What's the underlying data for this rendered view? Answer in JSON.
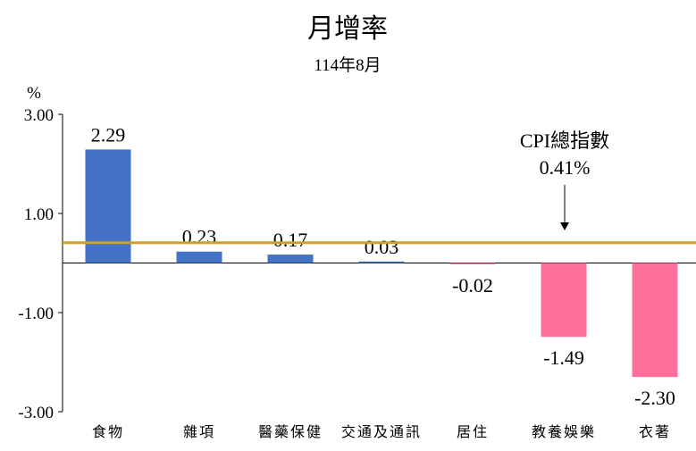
{
  "chart_data": {
    "type": "bar",
    "title": "月增率",
    "subtitle": "114年8月",
    "ylabel": "%",
    "ylim": [
      -3,
      3
    ],
    "yticks": [
      3,
      1,
      -1,
      -3
    ],
    "ytick_labels": [
      "3.00",
      "1.00",
      "-1.00",
      "-3.00"
    ],
    "categories": [
      "食物",
      "雜項",
      "醫藥保健",
      "交通及通訊",
      "居住",
      "教養娛樂",
      "衣著"
    ],
    "values": [
      2.29,
      0.23,
      0.17,
      0.03,
      -0.02,
      -1.49,
      -2.3
    ],
    "value_labels": [
      "2.29",
      "0.23",
      "0.17",
      "0.03",
      "-0.02",
      "-1.49",
      "-2.30"
    ],
    "colors": {
      "positive": "#4472C4",
      "negative": "#FF6F9C",
      "reference": "#C9A227"
    },
    "reference_line": {
      "value": 0.41,
      "label_line1": "CPI總指數",
      "label_line2": "0.41%"
    },
    "grid": false,
    "legend": "none"
  }
}
